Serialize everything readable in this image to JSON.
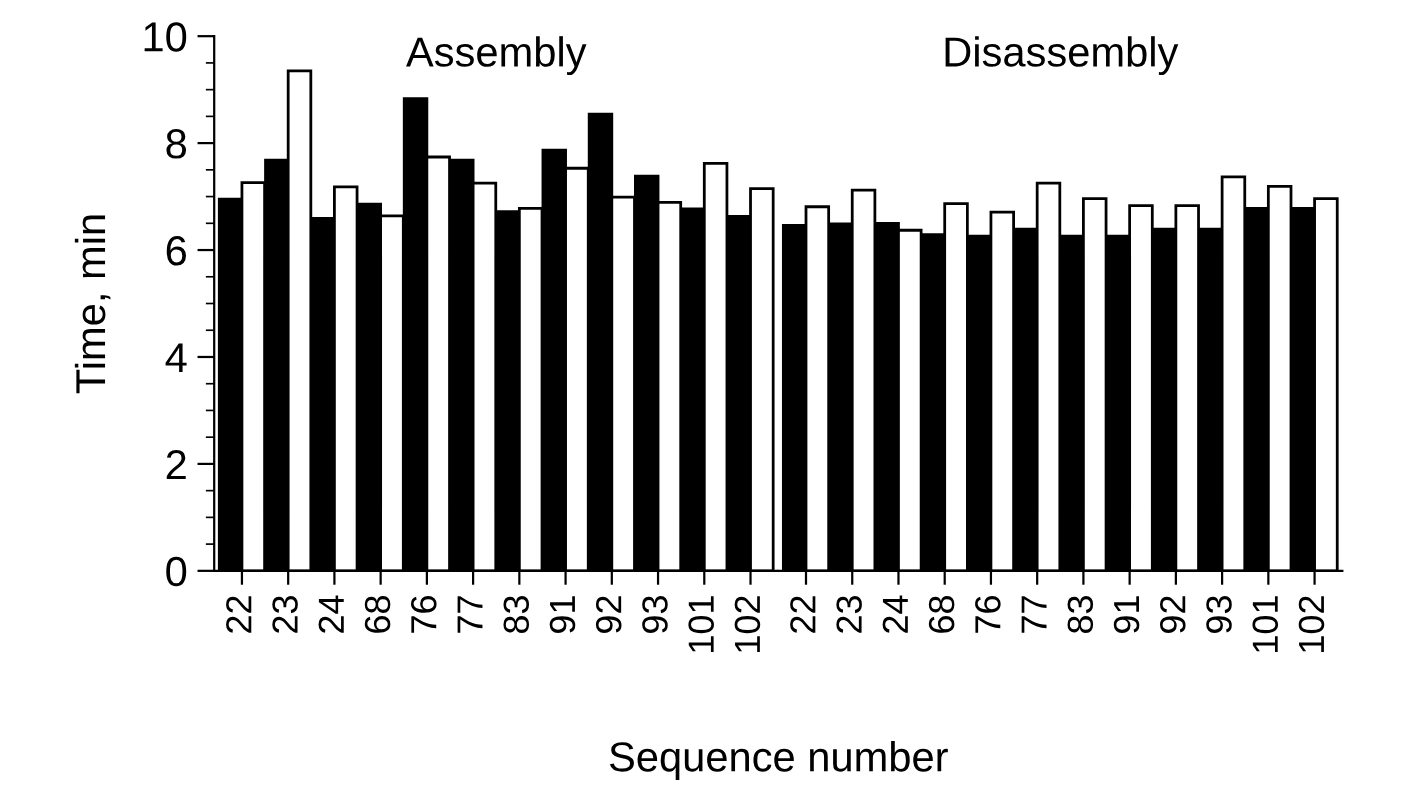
{
  "chart_data": [
    {
      "type": "bar",
      "title": "Assembly",
      "xlabel": "Sequence number",
      "ylabel": "Time, min",
      "categories": [
        "22",
        "23",
        "24",
        "68",
        "76",
        "77",
        "83",
        "91",
        "92",
        "93",
        "101",
        "102"
      ],
      "series": [
        {
          "color": "#000000",
          "values": [
            6.95,
            7.68,
            6.59,
            6.86,
            8.83,
            7.68,
            6.72,
            7.87,
            8.54,
            7.38,
            6.77,
            6.63
          ]
        },
        {
          "color": "#ffffff",
          "values": [
            7.26,
            9.35,
            7.18,
            6.64,
            7.74,
            7.25,
            6.78,
            7.53,
            6.99,
            6.89,
            7.62,
            7.15
          ]
        }
      ],
      "ylim": [
        0,
        10
      ],
      "yticks": [
        0,
        2,
        4,
        6,
        8,
        10
      ],
      "grid": false,
      "legend": false
    },
    {
      "type": "bar",
      "title": "Disassembly",
      "categories": [
        "22",
        "23",
        "24",
        "68",
        "76",
        "77",
        "83",
        "91",
        "92",
        "93",
        "101",
        "102"
      ],
      "series": [
        {
          "color": "#000000",
          "values": [
            6.46,
            6.49,
            6.5,
            6.29,
            6.26,
            6.39,
            6.26,
            6.26,
            6.39,
            6.39,
            6.78,
            6.78
          ]
        },
        {
          "color": "#ffffff",
          "values": [
            6.81,
            7.12,
            6.37,
            6.87,
            6.71,
            7.25,
            6.96,
            6.83,
            6.83,
            7.37,
            7.19,
            6.96
          ]
        }
      ],
      "ylim": [
        0,
        10
      ],
      "yticks": [
        0,
        2,
        4,
        6,
        8,
        10
      ],
      "tick_labels": "x",
      "grid": false,
      "legend": false
    }
  ]
}
